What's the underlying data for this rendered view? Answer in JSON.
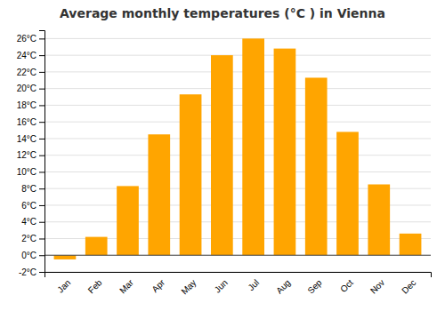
{
  "chart_data": {
    "type": "bar",
    "title": "Average monthly temperatures (°C ) in Vienna",
    "categories": [
      "Jan",
      "Feb",
      "Mar",
      "Apr",
      "May",
      "Jun",
      "Jul",
      "Aug",
      "Sep",
      "Oct",
      "Nov",
      "Dec"
    ],
    "values": [
      -0.5,
      2.2,
      8.3,
      14.5,
      19.3,
      24.0,
      26.0,
      24.8,
      21.3,
      14.8,
      8.5,
      2.6
    ],
    "color": "#FFA500",
    "ylim": [
      -2,
      27
    ],
    "yticks": [
      {
        "value": -2,
        "label": "-2°C"
      },
      {
        "value": 0,
        "label": "0°C"
      },
      {
        "value": 2,
        "label": "2°C"
      },
      {
        "value": 4,
        "label": "4°C"
      },
      {
        "value": 6,
        "label": "6°C"
      },
      {
        "value": 8,
        "label": "8°C"
      },
      {
        "value": 10,
        "label": "10°C"
      },
      {
        "value": 12,
        "label": "12°C"
      },
      {
        "value": 14,
        "label": "14°C"
      },
      {
        "value": 16,
        "label": "16°C"
      },
      {
        "value": 18,
        "label": "18°C"
      },
      {
        "value": 20,
        "label": "20°C"
      },
      {
        "value": 22,
        "label": "22°C"
      },
      {
        "value": 24,
        "label": "24°C"
      },
      {
        "value": 26,
        "label": "26°C"
      }
    ],
    "grid": true
  }
}
